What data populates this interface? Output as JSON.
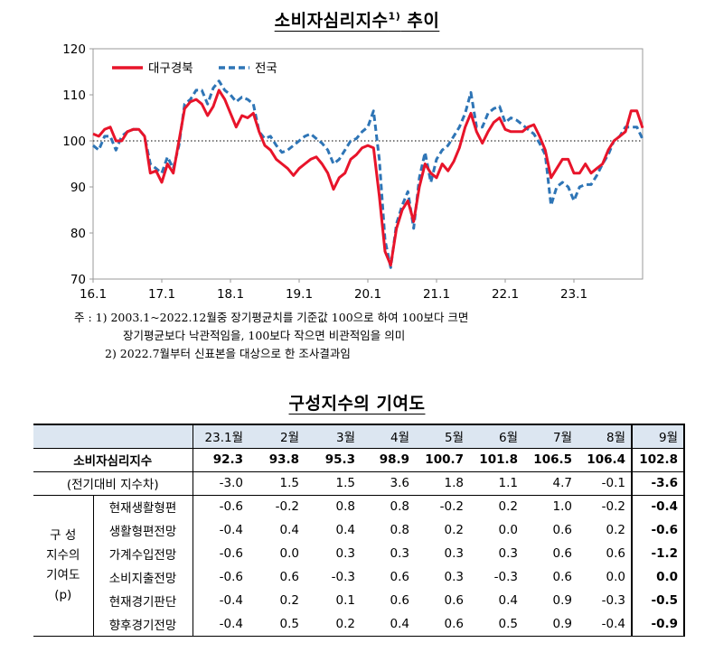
{
  "chart_title": {
    "main": "소비자심리지수",
    "sup": "1)",
    "tail": " 추이"
  },
  "chart_data": {
    "type": "line",
    "ylim": [
      70,
      120
    ],
    "yticks": [
      "70",
      "80",
      "90",
      "100",
      "110",
      "120"
    ],
    "xticks": [
      "16.1",
      "17.1",
      "18.1",
      "19.1",
      "20.1",
      "21.1",
      "22.1",
      "23.1"
    ],
    "x_range": [
      "2016.1",
      "2023.9"
    ],
    "reference_line": 100,
    "legend_position": "top-left",
    "series": [
      {
        "name": "대구경북",
        "style": "solid",
        "color": "#e8142a",
        "values": [
          101.5,
          101,
          102.5,
          103,
          100,
          100,
          102,
          102.5,
          102.5,
          101,
          93,
          93.5,
          91,
          95,
          93,
          100,
          107,
          108.5,
          109,
          108,
          105.5,
          107.5,
          111,
          109,
          106,
          103,
          105.5,
          105,
          106,
          102,
          99,
          98,
          96,
          95,
          94,
          92.5,
          94,
          95,
          96,
          96.5,
          95,
          93,
          89.5,
          92,
          93,
          96,
          97,
          98.5,
          99,
          98.5,
          88,
          76,
          73,
          81,
          85,
          87,
          82.5,
          90,
          95,
          93,
          92,
          95,
          93.5,
          95.5,
          98.5,
          103,
          106,
          102,
          99.5,
          102,
          104,
          105,
          102.5,
          102,
          102,
          102,
          103,
          103.5,
          101,
          98,
          92,
          94,
          96,
          96,
          93,
          93,
          95,
          93,
          94,
          95,
          98,
          100,
          101,
          102,
          106.5,
          106.5,
          102.8
        ]
      },
      {
        "name": "전국",
        "style": "dashed",
        "color": "#2e75b6",
        "values": [
          99,
          98,
          101,
          101,
          98,
          101,
          102,
          102.5,
          102.5,
          101,
          95,
          94,
          93,
          96.5,
          94,
          99,
          108,
          109,
          111,
          111,
          108,
          111.5,
          113,
          111,
          110,
          108.5,
          109.5,
          109,
          108,
          102,
          100.5,
          101,
          99,
          97.5,
          98,
          99,
          100,
          101,
          101.5,
          100.5,
          99.5,
          98,
          95,
          96,
          98,
          100,
          100.5,
          102,
          103,
          106.5,
          96,
          78.5,
          72.5,
          82,
          86,
          89,
          81,
          92,
          97.5,
          91,
          96,
          98,
          99,
          101,
          103,
          106,
          110.5,
          103,
          103,
          106,
          107,
          107.5,
          104,
          105,
          104.5,
          103.5,
          102.5,
          101.5,
          99.5,
          97,
          86,
          90,
          91,
          90,
          87,
          90,
          90.5,
          90.5,
          92.5,
          95,
          97,
          100,
          101,
          103,
          103,
          103,
          100.4
        ]
      }
    ]
  },
  "table_title": "구성지수의 기여도",
  "table": {
    "months": [
      "23.1월",
      "2월",
      "3월",
      "4월",
      "5월",
      "6월",
      "7월",
      "8월",
      "9월"
    ],
    "main_label": "소비자심리지수",
    "main_values": [
      "92.3",
      "93.8",
      "95.3",
      "98.9",
      "100.7",
      "101.8",
      "106.5",
      "106.4",
      "102.8"
    ],
    "diff_label": "(전기대비 지수차)",
    "diff_values": [
      "-3.0",
      "1.5",
      "1.5",
      "3.6",
      "1.8",
      "1.1",
      "4.7",
      "-0.1",
      "-3.6"
    ],
    "group_label": {
      "l1": "구  성",
      "l2": "지수의",
      "l3": "기여도",
      "l4": "(p)"
    },
    "rows": [
      {
        "label": "현재생활형편",
        "values": [
          "-0.6",
          "-0.2",
          "0.8",
          "0.8",
          "-0.2",
          "0.2",
          "1.0",
          "-0.2",
          "-0.4"
        ]
      },
      {
        "label": "생활형편전망",
        "values": [
          "-0.4",
          "0.4",
          "0.4",
          "0.8",
          "0.2",
          "0.0",
          "0.6",
          "0.2",
          "-0.6"
        ]
      },
      {
        "label": "가계수입전망",
        "values": [
          "-0.6",
          "0.0",
          "0.3",
          "0.3",
          "0.3",
          "0.3",
          "0.6",
          "0.6",
          "-1.2"
        ]
      },
      {
        "label": "소비지출전망",
        "values": [
          "-0.6",
          "0.6",
          "-0.3",
          "0.6",
          "0.3",
          "-0.3",
          "0.6",
          "0.0",
          "0.0"
        ]
      },
      {
        "label": "현재경기판단",
        "values": [
          "-0.4",
          "0.2",
          "0.1",
          "0.6",
          "0.6",
          "0.4",
          "0.9",
          "-0.3",
          "-0.5"
        ]
      },
      {
        "label": "향후경기전망",
        "values": [
          "-0.4",
          "0.5",
          "0.2",
          "0.4",
          "0.6",
          "0.5",
          "0.9",
          "-0.4",
          "-0.9"
        ]
      }
    ]
  },
  "notes": {
    "n1a": "주 : 1) 2003.1~2022.12월중 장기평균치를 기준값 100으로 하여 100보다 크면",
    "n1b": "장기평균보다 낙관적임을, 100보다 작으면 비관적임을 의미",
    "n2": "2) 2022.7월부터 신표본을 대상으로 한 조사결과임"
  }
}
